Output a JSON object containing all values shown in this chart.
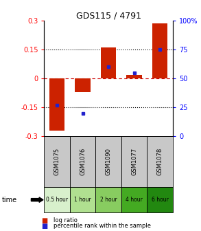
{
  "title": "GDS115 / 4791",
  "samples": [
    "GSM1075",
    "GSM1076",
    "GSM1090",
    "GSM1077",
    "GSM1078"
  ],
  "log_ratios": [
    -0.27,
    -0.07,
    0.16,
    0.02,
    0.285
  ],
  "percentile_ranks": [
    27,
    20,
    60,
    55,
    75
  ],
  "time_labels": [
    "0.5 hour",
    "1 hour",
    "2 hour",
    "4 hour",
    "6 hour"
  ],
  "time_colors": [
    "#d8f0cc",
    "#b0e090",
    "#88cc60",
    "#44aa22",
    "#228810"
  ],
  "ylim_left": [
    -0.3,
    0.3
  ],
  "ylim_right": [
    0,
    100
  ],
  "left_yticks": [
    -0.3,
    -0.15,
    0,
    0.15,
    0.3
  ],
  "left_yticklabels": [
    "-0.3",
    "-0.15",
    "0",
    "0.15",
    "0.3"
  ],
  "right_yticks": [
    0,
    25,
    50,
    75,
    100
  ],
  "right_yticklabels": [
    "0",
    "25",
    "50",
    "75",
    "100%"
  ],
  "bar_color": "#cc2200",
  "dot_color": "#2222cc",
  "zero_line_color": "#cc0000",
  "header_bg": "#c8c8c8",
  "legend_log_ratio": "log ratio",
  "legend_percentile": "percentile rank within the sample",
  "time_row_label": "time"
}
